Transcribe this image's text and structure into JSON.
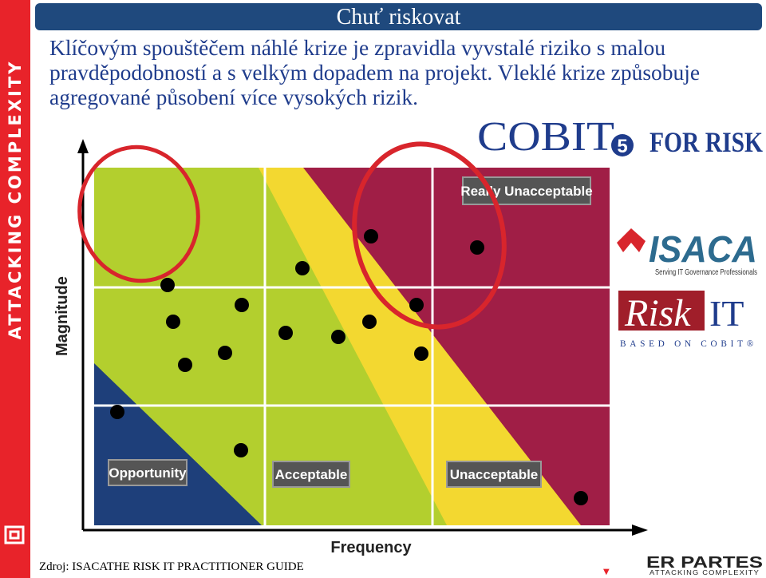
{
  "slide": {
    "title": "Chuť riskovat",
    "intro_text": "Klíčovým spouštěčem náhlé krize je zpravidla vyvstalé riziko s malou pravděpodobností a s velkým dopadem na projekt. Vleklé krize způsobuje agregované působení více vysokých rizik.",
    "source": "Zdroj: ISACATHE RISK IT PRACTITIONER GUIDE"
  },
  "sidebar": {
    "brand_text": "ATTACKING COMPLEXITY"
  },
  "chart": {
    "xlabel": "Frequency",
    "ylabel": "Magnitude",
    "zones": [
      {
        "label": "Opportunity",
        "color": "#1e3f7a"
      },
      {
        "label": "Acceptable",
        "color": "#b3cf2e"
      },
      {
        "label": "Unacceptable",
        "color": "#f3d830"
      },
      {
        "label": "Really Unacceptable",
        "color": "#a01e46"
      }
    ],
    "highlight_color": "#d8252c"
  },
  "logos": {
    "cobit": "COBIT",
    "cobit_version": "5",
    "for_risk": "FOR RISK",
    "isaca": "ISACA",
    "isaca_tagline": "Serving IT Governance Professionals",
    "riskit_risk": "Risk",
    "riskit_it": "IT",
    "riskit_based": "BASED ON COBIT®"
  },
  "footer": {
    "brand": "ER PARTES",
    "tagline": "ATTACKING COMPLEXITY"
  }
}
